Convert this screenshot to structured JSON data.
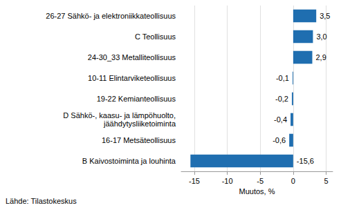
{
  "chart_data": {
    "type": "bar",
    "orientation": "horizontal",
    "categories": [
      "26-27 Sähkö- ja elektroniikkateollisuus",
      "C Teollisuus",
      "24-30_33 Metalliteollisuus",
      "10-11 Elintarviketeollisuus",
      "19-22 Kemianteollisuus",
      "D Sähkö-, kaasu- ja lämpöhuolto,\njäähdytysliiketoiminta",
      "16-17 Metsäteollisuus",
      "B Kaivostoiminta ja louhinta"
    ],
    "values": [
      3.5,
      3.0,
      2.9,
      -0.1,
      -0.2,
      -0.4,
      -0.6,
      -15.6
    ],
    "value_labels": [
      "3,5",
      "3,0",
      "2,9",
      "-0,1",
      "-0,2",
      "-0,4",
      "-0,6",
      "-15,6"
    ],
    "color": "#1f6eb0",
    "xlim": [
      -17,
      6
    ],
    "xticks": [
      -15,
      -10,
      -5,
      0,
      5
    ],
    "x_label": "Muutos, %",
    "annotation": "Lähde: Tilastokeskus",
    "data_labels": true,
    "grid": true
  }
}
